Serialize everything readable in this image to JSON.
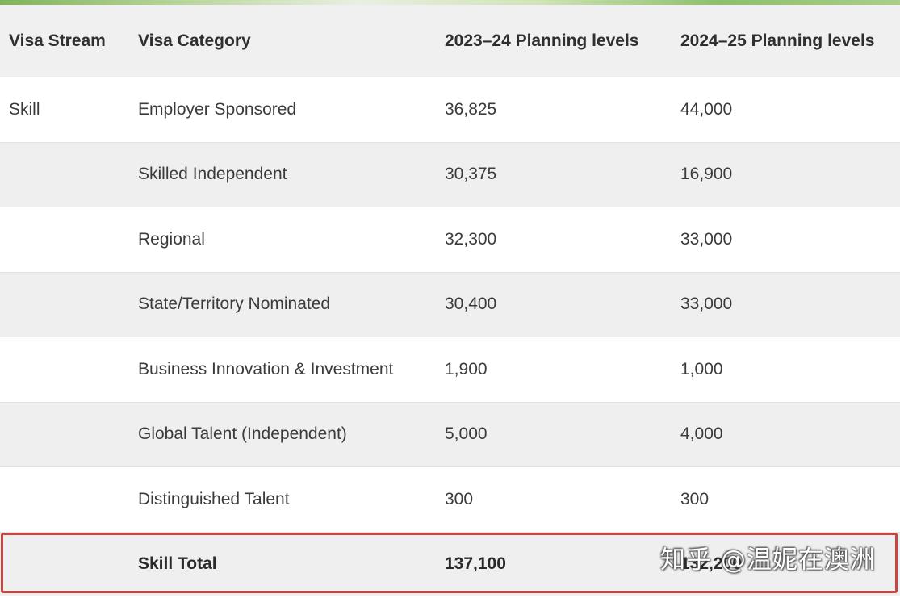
{
  "table": {
    "headers": [
      "Visa Stream",
      "Visa Category",
      "2023–24 Planning levels",
      "2024–25 Planning levels"
    ],
    "rows": [
      {
        "stream": "Skill",
        "category": "Employer Sponsored",
        "y2023": "36,825",
        "y2024": "44,000"
      },
      {
        "stream": "",
        "category": "Skilled Independent",
        "y2023": "30,375",
        "y2024": "16,900"
      },
      {
        "stream": "",
        "category": "Regional",
        "y2023": "32,300",
        "y2024": "33,000"
      },
      {
        "stream": "",
        "category": "State/Territory Nominated",
        "y2023": "30,400",
        "y2024": "33,000"
      },
      {
        "stream": "",
        "category": "Business Innovation & Investment",
        "y2023": "1,900",
        "y2024": "1,000"
      },
      {
        "stream": "",
        "category": "Global Talent (Independent)",
        "y2023": "5,000",
        "y2024": "4,000"
      },
      {
        "stream": "",
        "category": "Distinguished Talent",
        "y2023": "300",
        "y2024": "300"
      }
    ],
    "total": {
      "stream": "",
      "category": "Skill Total",
      "y2023": "137,100",
      "y2024": "132,200"
    }
  },
  "watermark": {
    "text": "知乎 @温妮在澳洲"
  },
  "colors": {
    "header_bg": "#f0f0f0",
    "alt_row_bg": "#efefef",
    "highlight_border": "#c8463f"
  }
}
